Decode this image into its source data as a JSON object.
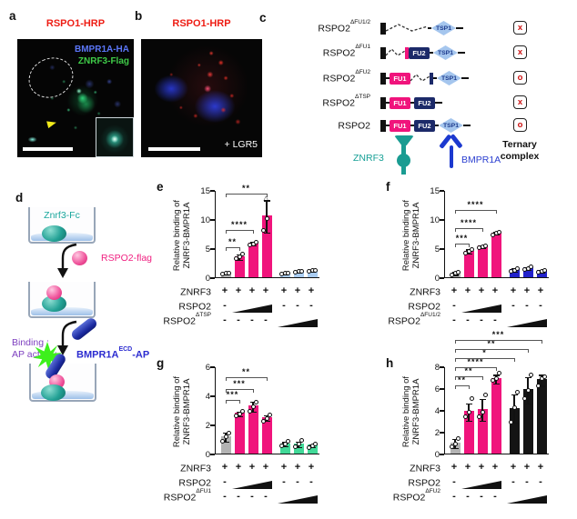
{
  "figure": {
    "panels": {
      "a": {
        "label": "a",
        "title": "RSPO1-HRP",
        "overlay_label_1": "BMPR1A-HA",
        "overlay_label_2": "ZNRF3-Flag"
      },
      "b": {
        "label": "b",
        "title": "RSPO1-HRP",
        "corner_label": "+ LGR5"
      },
      "c": {
        "label": "c",
        "domain_labels": {
          "fu1": "FU1",
          "fu2": "FU2",
          "tsp": "TSP1"
        },
        "constructs": [
          {
            "name": "RSPO2",
            "sup": "ΔFU1/2",
            "tokens": [
              "sp",
              "zigL",
              "conn",
              "tsp",
              "tail"
            ],
            "result": "x"
          },
          {
            "name": "RSPO2",
            "sup": "ΔFU1",
            "tokens": [
              "sp",
              "zigS",
              "stubP",
              "fu2",
              "conn",
              "tsp",
              "tail"
            ],
            "result": "x"
          },
          {
            "name": "RSPO2",
            "sup": "ΔFU2",
            "tokens": [
              "sp",
              "conn",
              "fu1",
              "zigS",
              "stubN",
              "conn",
              "tsp",
              "tail"
            ],
            "result": "o"
          },
          {
            "name": "RSPO2",
            "sup": "ΔTSP",
            "tokens": [
              "sp",
              "conn",
              "fu1",
              "conn",
              "fu2",
              "tail"
            ],
            "result": "x"
          },
          {
            "name": "RSPO2",
            "sup": "",
            "tokens": [
              "sp",
              "conn",
              "fu1",
              "conn",
              "fu2",
              "conn",
              "tsp",
              "tail"
            ],
            "result": "o"
          }
        ],
        "znrf3_label": "ZNRF3",
        "bmpr1a_label": "BMPR1A",
        "ternary_label_line1": "Ternary",
        "ternary_label_line2": "complex"
      },
      "d": {
        "label": "d",
        "well1_label": "Znrf3-Fc",
        "rspo2_label": "RSPO2-flag",
        "bmpr1a_main": "BMPR1A",
        "bmpr1a_sup": "ECD",
        "bmpr1a_tail": "-AP",
        "binding_line1": "Binding :",
        "binding_line2": "AP activity"
      }
    },
    "palette": {
      "red_title": "#ee1d14",
      "pink": "#f0147c",
      "navy_fu2": "#1c2a69",
      "tsp_fill": "#a5c6ee",
      "tsp_text": "#1c3a8c",
      "teal_znrf3": "#1a9c92",
      "blue_bmpr1a": "#1c39cf",
      "result_red": "#cc1111",
      "gray_bar": "#b3b3b3",
      "lightblue_bar": "#a9ccf1",
      "blue_bar": "#2222cb",
      "green_bar": "#41d998",
      "black_bar": "#141414",
      "overlay_blue": "#5b76f7",
      "overlay_green": "#3fcb48",
      "binding_purple": "#7d3fbf",
      "starburst_green": "#3df01c"
    }
  },
  "chart_data": [
    {
      "panel": "e",
      "type": "bar",
      "ylabel_lines": [
        "Relative binding of",
        "ZNRF3-BMPR1A"
      ],
      "ylim": [
        0,
        15
      ],
      "yticks": [
        0,
        5,
        10,
        15
      ],
      "values": [
        0.8,
        3.6,
        5.9,
        10.6,
        0.8,
        1.1,
        1.3
      ],
      "colors": [
        "gray_bar",
        "pink",
        "pink",
        "pink",
        "lightblue_bar",
        "lightblue_bar",
        "lightblue_bar"
      ],
      "errors": [
        0.1,
        0.45,
        0.3,
        2.8,
        0.1,
        0.15,
        0.15
      ],
      "points": [
        [
          0.7,
          0.8,
          0.9
        ],
        [
          3.3,
          3.6,
          4.1
        ],
        [
          5.7,
          5.9,
          6.2
        ],
        [
          8.2,
          10.2
        ],
        [
          0.7,
          0.8,
          0.9
        ],
        [
          1.0,
          1.1,
          1.2
        ],
        [
          1.2,
          1.3,
          1.4
        ]
      ],
      "tri_points": [
        {
          "bar": 3,
          "y": 13.6
        }
      ],
      "sig": [
        {
          "from": 0,
          "to": 1,
          "label": "**",
          "y": 5.3
        },
        {
          "from": 0,
          "to": 2,
          "label": "****",
          "y": 8.3
        },
        {
          "from": 0,
          "to": 3,
          "label": "**",
          "y": 14.6
        }
      ],
      "xrows": [
        {
          "label": "ZNRF3",
          "sup": "",
          "cells": [
            "+",
            "+",
            "+",
            "+",
            "+",
            "+",
            "+"
          ]
        },
        {
          "label": "RSPO2",
          "sup": "",
          "cells": [
            "-",
            "",
            "",
            "",
            "-",
            "-",
            "-"
          ],
          "wedge": [
            1,
            3
          ]
        },
        {
          "label": "RSPO2",
          "sup": "ΔTSP",
          "cells": [
            "-",
            "-",
            "-",
            "-",
            "",
            "",
            ""
          ],
          "wedge": [
            4,
            6
          ]
        }
      ]
    },
    {
      "panel": "f",
      "type": "bar",
      "ylabel_lines": [
        "Relative binding of",
        "ZNRF3-BMPR1A"
      ],
      "ylim": [
        0,
        15
      ],
      "yticks": [
        0,
        5,
        10,
        15
      ],
      "values": [
        0.8,
        4.6,
        5.4,
        7.7,
        1.4,
        1.7,
        1.2
      ],
      "colors": [
        "gray_bar",
        "pink",
        "pink",
        "pink",
        "blue_bar",
        "blue_bar",
        "blue_bar"
      ],
      "errors": [
        0.25,
        0.35,
        0.2,
        0.2,
        0.3,
        0.25,
        0.2
      ],
      "points": [
        [
          0.5,
          0.8,
          1.0
        ],
        [
          4.3,
          4.6,
          5.0
        ],
        [
          5.2,
          5.4,
          5.6
        ],
        [
          7.5,
          7.7,
          7.9
        ],
        [
          1.2,
          1.4,
          1.7
        ],
        [
          1.5,
          1.7,
          1.9
        ],
        [
          1.0,
          1.2,
          1.4
        ]
      ],
      "tri_points": [],
      "sig": [
        {
          "from": 0,
          "to": 1,
          "label": "***",
          "y": 5.9
        },
        {
          "from": 0,
          "to": 2,
          "label": "****",
          "y": 8.6
        },
        {
          "from": 0,
          "to": 3,
          "label": "****",
          "y": 11.7
        }
      ],
      "xrows": [
        {
          "label": "ZNRF3",
          "sup": "",
          "cells": [
            "+",
            "+",
            "+",
            "+",
            "+",
            "+",
            "+"
          ]
        },
        {
          "label": "RSPO2",
          "sup": "",
          "cells": [
            "-",
            "",
            "",
            "",
            "-",
            "-",
            "-"
          ],
          "wedge": [
            1,
            3
          ]
        },
        {
          "label": "RSPO2",
          "sup": "ΔFU1/2",
          "cells": [
            "-",
            "-",
            "-",
            "-",
            "",
            "",
            ""
          ],
          "wedge": [
            4,
            6
          ]
        }
      ]
    },
    {
      "panel": "g",
      "type": "bar",
      "ylabel_lines": [
        "Relative binding of",
        "ZNRF3-BMPR1A"
      ],
      "ylim": [
        0,
        6
      ],
      "yticks": [
        0,
        2,
        4,
        6
      ],
      "values": [
        1.2,
        2.8,
        3.3,
        2.5,
        0.7,
        0.7,
        0.6
      ],
      "colors": [
        "gray_bar",
        "pink",
        "pink",
        "pink",
        "green_bar",
        "green_bar",
        "green_bar"
      ],
      "errors": [
        0.3,
        0.15,
        0.35,
        0.2,
        0.15,
        0.2,
        0.1
      ],
      "points": [
        [
          0.9,
          1.2,
          1.45
        ],
        [
          2.65,
          2.8,
          2.95
        ],
        [
          3.0,
          3.3,
          3.6
        ],
        [
          2.3,
          2.5,
          2.7
        ],
        [
          0.6,
          0.7,
          0.9
        ],
        [
          0.55,
          0.7,
          0.95
        ],
        [
          0.5,
          0.6,
          0.7
        ]
      ],
      "tri_points": [],
      "sig": [
        {
          "from": 0,
          "to": 1,
          "label": "***",
          "y": 3.75
        },
        {
          "from": 0,
          "to": 2,
          "label": "***",
          "y": 4.5
        },
        {
          "from": 0,
          "to": 3,
          "label": "**",
          "y": 5.3
        }
      ],
      "xrows": [
        {
          "label": "ZNRF3",
          "sup": "",
          "cells": [
            "+",
            "+",
            "+",
            "+",
            "+",
            "+",
            "+"
          ]
        },
        {
          "label": "RSPO2",
          "sup": "",
          "cells": [
            "-",
            "",
            "",
            "",
            "-",
            "-",
            "-"
          ],
          "wedge": [
            1,
            3
          ]
        },
        {
          "label": "RSPO2",
          "sup": "ΔFU1",
          "cells": [
            "-",
            "-",
            "-",
            "-",
            "",
            "",
            ""
          ],
          "wedge": [
            4,
            6
          ]
        }
      ]
    },
    {
      "panel": "h",
      "type": "bar",
      "ylabel_lines": [
        "Relative binding of",
        "ZNRF3-BMPR1A"
      ],
      "ylim": [
        0,
        8
      ],
      "yticks": [
        0,
        2,
        4,
        6,
        8
      ],
      "values": [
        1.0,
        3.9,
        4.1,
        6.9,
        4.2,
        5.9,
        6.8
      ],
      "colors": [
        "gray_bar",
        "pink",
        "pink",
        "pink",
        "black_bar",
        "black_bar",
        "black_bar"
      ],
      "errors": [
        0.4,
        0.8,
        1.0,
        0.4,
        1.3,
        1.2,
        0.5
      ],
      "points": [
        [
          0.7,
          1.0,
          1.5
        ],
        [
          3.5,
          3.9,
          5.1
        ],
        [
          3.5,
          3.9,
          5.5
        ],
        [
          6.8,
          7.0,
          7.5
        ],
        [
          3.0,
          4.3,
          5.7
        ],
        [
          5.1,
          5.9,
          7.3
        ],
        [
          6.3,
          7.0,
          7.1
        ]
      ],
      "tri_points": [],
      "sig": [
        {
          "from": 0,
          "to": 1,
          "label": "**",
          "y": 6.3
        },
        {
          "from": 0,
          "to": 2,
          "label": "**",
          "y": 7.15
        },
        {
          "from": 0,
          "to": 3,
          "label": "****",
          "y": 8.0
        },
        {
          "from": 0,
          "to": 4,
          "label": "*",
          "y": 8.85
        },
        {
          "from": 0,
          "to": 5,
          "label": "**",
          "y": 9.65
        },
        {
          "from": 0,
          "to": 6,
          "label": "***",
          "y": 10.5
        }
      ],
      "xrows": [
        {
          "label": "ZNRF3",
          "sup": "",
          "cells": [
            "+",
            "+",
            "+",
            "+",
            "+",
            "+",
            "+"
          ]
        },
        {
          "label": "RSPO2",
          "sup": "",
          "cells": [
            "-",
            "",
            "",
            "",
            "-",
            "-",
            "-"
          ],
          "wedge": [
            1,
            3
          ]
        },
        {
          "label": "RSPO2",
          "sup": "ΔFU2",
          "cells": [
            "-",
            "-",
            "-",
            "-",
            "",
            "",
            ""
          ],
          "wedge": [
            4,
            6
          ]
        }
      ]
    }
  ]
}
